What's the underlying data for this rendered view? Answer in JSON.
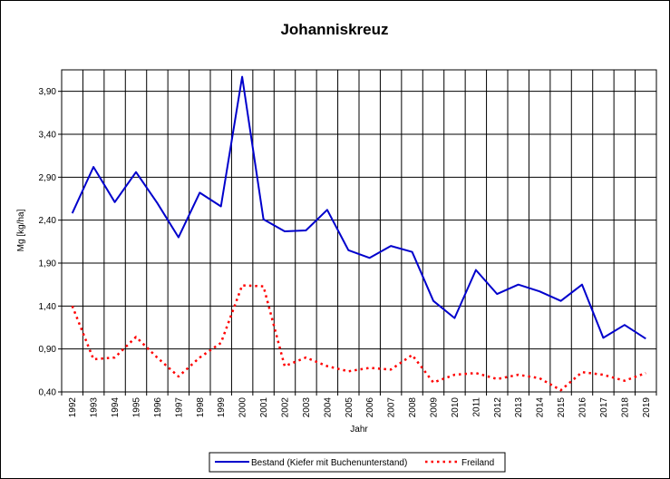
{
  "chart_data": {
    "type": "line",
    "title": "Johanniskreuz",
    "xlabel": "Jahr",
    "ylabel": "Mg [kg/ha]",
    "ylim": [
      0.4,
      4.15
    ],
    "yticks": [
      "0,40",
      "0,90",
      "1,40",
      "1,90",
      "2,40",
      "2,90",
      "3,40",
      "3,90"
    ],
    "ytick_values": [
      0.4,
      0.9,
      1.4,
      1.9,
      2.4,
      2.9,
      3.4,
      3.9
    ],
    "x": [
      "1992",
      "1993",
      "1994",
      "1995",
      "1996",
      "1997",
      "1998",
      "1999",
      "2000",
      "2001",
      "2002",
      "2003",
      "2004",
      "2005",
      "2006",
      "2007",
      "2008",
      "2009",
      "2010",
      "2011",
      "2012",
      "2013",
      "2014",
      "2015",
      "2016",
      "2017",
      "2018",
      "2019"
    ],
    "grid": true,
    "legend_position": "bottom",
    "series": [
      {
        "name": "Bestand (Kiefer mit Buchenunterstand)",
        "color": "#0000cc",
        "style": "solid",
        "values": [
          2.48,
          3.02,
          2.61,
          2.96,
          2.6,
          2.2,
          2.72,
          2.56,
          4.07,
          2.41,
          2.27,
          2.28,
          2.52,
          2.05,
          1.96,
          2.1,
          2.03,
          1.46,
          1.26,
          1.82,
          1.54,
          1.65,
          1.57,
          1.46,
          1.65,
          1.03,
          1.18,
          1.02
        ]
      },
      {
        "name": "Freiland",
        "color": "#ff0000",
        "style": "dotted",
        "values": [
          1.4,
          0.78,
          0.8,
          1.04,
          0.8,
          0.58,
          0.8,
          0.97,
          1.64,
          1.63,
          0.7,
          0.8,
          0.7,
          0.64,
          0.68,
          0.66,
          0.83,
          0.51,
          0.6,
          0.62,
          0.55,
          0.6,
          0.56,
          0.42,
          0.63,
          0.6,
          0.53,
          0.62
        ]
      }
    ]
  }
}
